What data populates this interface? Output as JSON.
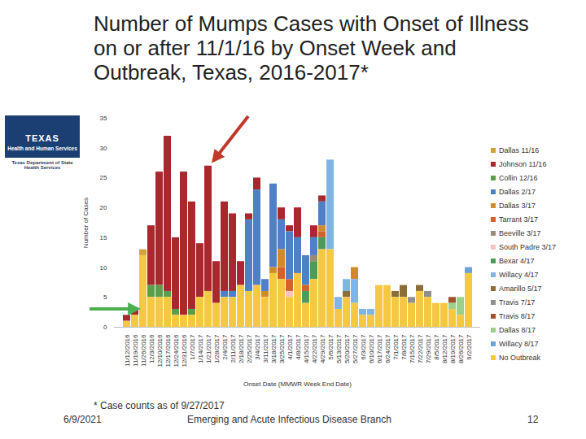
{
  "chart_data": {
    "type": "bar",
    "stacked": true,
    "title": "Number of Mumps Cases with Onset of Illness on or after 11/1/16 by Onset Week and Outbreak, Texas, 2016-2017*",
    "x_label": "Onset Date (MMWR Week End Date)",
    "y_label": "Number of Cases",
    "annotations": {
      "footnote": "* Case counts as of 9/27/2017",
      "date": "6/9/2021",
      "branch": "Emerging and Acute Infectious Disease Branch",
      "page": "12",
      "logo": [
        "TEXAS",
        "Health and Human Services",
        "Texas Department of State Health Services"
      ]
    },
    "categories": [
      "11/12/2016",
      "11/19/2016",
      "11/26/2016",
      "12/3/2016",
      "12/10/2016",
      "12/17/2016",
      "12/24/2016",
      "12/31/2016",
      "1/7/2017",
      "1/14/2017",
      "1/21/2017",
      "1/28/2017",
      "2/4/2017",
      "2/11/2017",
      "2/18/2017",
      "2/25/2017",
      "3/4/2017",
      "3/11/2017",
      "3/18/2017",
      "3/25/2017",
      "4/1/2017",
      "4/8/2017",
      "4/15/2017",
      "4/22/2017",
      "4/29/2017",
      "5/6/2017",
      "5/13/2017",
      "5/20/2017",
      "5/27/2017",
      "6/3/2017",
      "6/10/2017",
      "6/17/2017",
      "6/24/2017",
      "7/1/2017",
      "7/8/2017",
      "7/15/2017",
      "7/22/2017",
      "7/29/2017",
      "8/5/2017",
      "8/12/2017",
      "8/19/2017",
      "8/26/2017",
      "9/2/2017"
    ],
    "series": [
      {
        "name": "Dallas 11/16",
        "color": "#d4a13a",
        "values": [
          0,
          0,
          1,
          0,
          0,
          0,
          0,
          0,
          0,
          0,
          0,
          0,
          0,
          0,
          0,
          0,
          0,
          0,
          0,
          0,
          0,
          0,
          0,
          0,
          0,
          0,
          0,
          0,
          0,
          0,
          0,
          0,
          0,
          0,
          0,
          0,
          0,
          0,
          0,
          0,
          0,
          0,
          0
        ]
      },
      {
        "name": "Johnson 11/16",
        "color": "#a8282e",
        "values": [
          1,
          1,
          0,
          10,
          19,
          26,
          12,
          24,
          18,
          9,
          21,
          7,
          15,
          13,
          4,
          1,
          2,
          0,
          0,
          2,
          1,
          5,
          0,
          2,
          1,
          0,
          0,
          0,
          0,
          0,
          0,
          0,
          0,
          0,
          0,
          0,
          0,
          0,
          0,
          0,
          0,
          0,
          0
        ]
      },
      {
        "name": "Collin 12/16",
        "color": "#5a9e4b",
        "values": [
          0,
          0,
          0,
          2,
          2,
          1,
          1,
          0,
          1,
          0,
          0,
          0,
          0,
          0,
          0,
          0,
          0,
          0,
          0,
          0,
          0,
          0,
          0,
          0,
          0,
          0,
          0,
          0,
          0,
          0,
          0,
          0,
          0,
          0,
          0,
          0,
          0,
          0,
          0,
          0,
          0,
          0,
          0
        ]
      },
      {
        "name": "Dallas 2/17",
        "color": "#4f7fc4",
        "values": [
          0,
          0,
          0,
          0,
          0,
          0,
          0,
          0,
          0,
          0,
          0,
          0,
          1,
          1,
          0,
          12,
          16,
          2,
          14,
          5,
          8,
          6,
          5,
          3,
          4,
          0,
          0,
          0,
          0,
          0,
          0,
          0,
          0,
          0,
          0,
          0,
          0,
          0,
          0,
          0,
          0,
          0,
          0
        ]
      },
      {
        "name": "Dallas 3/17",
        "color": "#d08a2e",
        "values": [
          0,
          0,
          0,
          0,
          0,
          0,
          0,
          0,
          0,
          0,
          0,
          0,
          0,
          0,
          0,
          0,
          0,
          1,
          1,
          3,
          0,
          0,
          0,
          0,
          1,
          0,
          0,
          0,
          2,
          0,
          0,
          0,
          0,
          0,
          0,
          0,
          0,
          0,
          0,
          0,
          0,
          0,
          0
        ]
      },
      {
        "name": "Tarrant 3/17",
        "color": "#d2622a",
        "values": [
          0,
          0,
          0,
          0,
          0,
          0,
          0,
          0,
          0,
          0,
          0,
          0,
          0,
          0,
          0,
          0,
          0,
          0,
          0,
          2,
          2,
          0,
          1,
          0,
          1,
          0,
          0,
          0,
          0,
          0,
          0,
          0,
          0,
          0,
          0,
          0,
          0,
          0,
          0,
          0,
          0,
          0,
          0
        ]
      },
      {
        "name": "Beeville 3/17",
        "color": "#9a8c7a",
        "values": [
          0,
          0,
          0,
          0,
          0,
          0,
          0,
          0,
          0,
          0,
          0,
          0,
          0,
          0,
          0,
          0,
          0,
          0,
          0,
          0,
          0,
          0,
          0,
          1,
          0,
          0,
          0,
          0,
          0,
          0,
          0,
          0,
          0,
          0,
          0,
          0,
          0,
          0,
          0,
          0,
          0,
          0,
          0
        ]
      },
      {
        "name": "South Padre 3/17",
        "color": "#f2c4c4",
        "values": [
          0,
          0,
          0,
          0,
          0,
          0,
          0,
          0,
          0,
          0,
          0,
          0,
          0,
          0,
          0,
          0,
          0,
          0,
          0,
          0,
          1,
          0,
          0,
          0,
          0,
          0,
          0,
          0,
          0,
          0,
          0,
          0,
          0,
          0,
          0,
          0,
          0,
          0,
          0,
          0,
          0,
          0,
          0
        ]
      },
      {
        "name": "Bexar 4/17",
        "color": "#4d9a5a",
        "values": [
          0,
          0,
          0,
          0,
          0,
          0,
          0,
          0,
          0,
          0,
          0,
          0,
          0,
          0,
          0,
          0,
          0,
          0,
          0,
          0,
          0,
          0,
          2,
          3,
          2,
          0,
          0,
          0,
          0,
          0,
          0,
          0,
          0,
          0,
          0,
          0,
          0,
          0,
          0,
          0,
          0,
          0,
          0
        ]
      },
      {
        "name": "Willacy 4/17",
        "color": "#7fb4e3",
        "values": [
          0,
          0,
          0,
          0,
          0,
          0,
          0,
          0,
          0,
          0,
          0,
          0,
          0,
          0,
          0,
          0,
          0,
          0,
          0,
          0,
          0,
          0,
          0,
          0,
          0,
          15,
          2,
          2,
          4,
          1,
          1,
          0,
          0,
          0,
          0,
          0,
          0,
          0,
          0,
          0,
          0,
          0,
          0
        ]
      },
      {
        "name": "Amarillo 5/17",
        "color": "#8c6d3a",
        "values": [
          0,
          0,
          0,
          0,
          0,
          0,
          0,
          0,
          0,
          0,
          0,
          0,
          0,
          0,
          0,
          0,
          0,
          0,
          0,
          0,
          0,
          0,
          0,
          0,
          0,
          0,
          0,
          1,
          0,
          0,
          0,
          0,
          0,
          1,
          2,
          0,
          1,
          0,
          0,
          0,
          0,
          0,
          0
        ]
      },
      {
        "name": "Travis 7/17",
        "color": "#8f8f8f",
        "values": [
          0,
          0,
          0,
          0,
          0,
          0,
          0,
          0,
          0,
          0,
          0,
          0,
          0,
          0,
          0,
          0,
          0,
          0,
          0,
          0,
          0,
          0,
          0,
          0,
          0,
          0,
          0,
          0,
          0,
          0,
          0,
          0,
          0,
          0,
          0,
          1,
          0,
          1,
          0,
          0,
          0,
          0,
          0
        ]
      },
      {
        "name": "Travis 8/17",
        "color": "#a0522d",
        "values": [
          0,
          0,
          0,
          0,
          0,
          0,
          0,
          0,
          0,
          0,
          0,
          0,
          0,
          0,
          0,
          0,
          0,
          0,
          0,
          0,
          0,
          0,
          0,
          0,
          0,
          0,
          0,
          0,
          0,
          0,
          0,
          0,
          0,
          0,
          0,
          0,
          0,
          0,
          0,
          0,
          1,
          0,
          0
        ]
      },
      {
        "name": "Dallas 8/17",
        "color": "#9bd08a",
        "values": [
          0,
          0,
          0,
          0,
          0,
          0,
          0,
          0,
          0,
          0,
          0,
          0,
          0,
          0,
          0,
          0,
          0,
          0,
          0,
          0,
          0,
          0,
          0,
          0,
          0,
          0,
          0,
          0,
          0,
          0,
          0,
          0,
          0,
          0,
          0,
          0,
          0,
          0,
          0,
          0,
          1,
          3,
          0
        ]
      },
      {
        "name": "Willacy 8/17",
        "color": "#6aa3d8",
        "values": [
          0,
          0,
          0,
          0,
          0,
          0,
          0,
          0,
          0,
          0,
          0,
          0,
          0,
          0,
          0,
          0,
          0,
          0,
          0,
          0,
          0,
          0,
          0,
          0,
          0,
          0,
          0,
          0,
          0,
          0,
          0,
          0,
          0,
          0,
          0,
          0,
          0,
          0,
          0,
          0,
          0,
          0,
          1
        ]
      },
      {
        "name": "No Outbreak",
        "color": "#f5c842",
        "values": [
          1,
          2,
          12,
          5,
          5,
          5,
          2,
          2,
          2,
          5,
          6,
          4,
          5,
          5,
          7,
          6,
          7,
          5,
          9,
          8,
          5,
          9,
          4,
          8,
          13,
          13,
          3,
          5,
          4,
          2,
          2,
          7,
          7,
          5,
          5,
          4,
          6,
          5,
          4,
          4,
          3,
          2,
          9
        ]
      }
    ],
    "ylim": [
      0,
      35
    ],
    "yticks": [
      0,
      5,
      10,
      15,
      20,
      25,
      30,
      35
    ],
    "grid": false,
    "legend": "right"
  }
}
